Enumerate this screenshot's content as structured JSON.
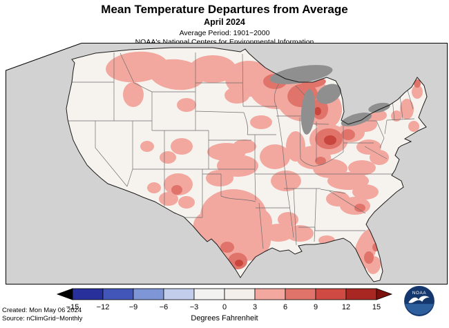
{
  "header": {
    "title": "Mean Temperature Departures from Average",
    "subtitle": "April 2024",
    "average_period": "Average Period: 1901−2000",
    "organization": "NOAA's National Centers for Environmental Information"
  },
  "map": {
    "description": "Contiguous United States shaded by mean temperature departure; widespread warm (pink/red) anomalies over the Upper Midwest, Great Lakes, Ohio Valley, Texas and the Southeast; near-normal (white) over the West and Pacific Northwest",
    "palette": {
      "outside": "#d2d2d2",
      "land": "#f6f3ee",
      "lakes": "#8f8f8f",
      "state-line": "#6e6e6e",
      "us-outline": "#1a1a1a",
      "anom-pink": "#f2a79f",
      "anom-red": "#e0746b",
      "anom-dark-red": "#c9463f"
    }
  },
  "colorbar": {
    "title": "Degrees Fahrenheit",
    "tick_labels": [
      "−15",
      "−12",
      "−9",
      "−6",
      "−3",
      "0",
      "3",
      "6",
      "9",
      "12",
      "15"
    ],
    "segment_colors": [
      "#27309b",
      "#4156b8",
      "#7e96d6",
      "#c2cdeb",
      "#f2f2f0",
      "#f5efec",
      "#f2a79f",
      "#e0746b",
      "#cf4a43",
      "#a82722"
    ],
    "left_arrow_color": "#000000",
    "right_arrow_color": "#7c100d"
  },
  "footer": {
    "created": "Created: Mon May 06 2024",
    "source": "Source: nClimGrid−Monthly"
  },
  "logo": {
    "alt": "NOAA logo",
    "text": "NOAA"
  }
}
